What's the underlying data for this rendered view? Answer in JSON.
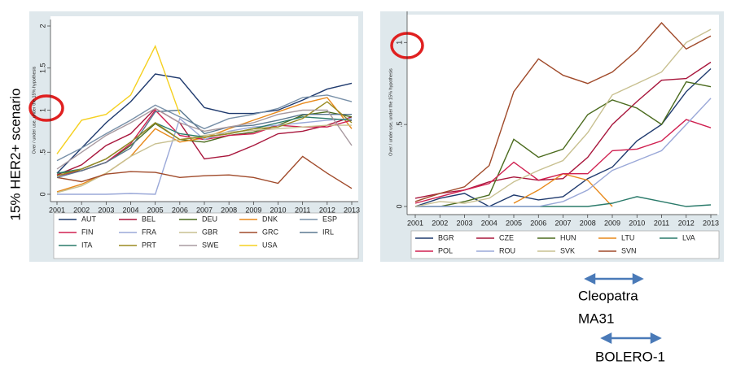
{
  "side_label": "15% HER2+ scenario",
  "annotations": [
    "Cleopatra",
    "MA31",
    "BOLERO-1"
  ],
  "chart_data": [
    {
      "type": "line",
      "y_label": "Over / under use, under the 15% hypothesis",
      "x": [
        2001,
        2002,
        2003,
        2004,
        2005,
        2006,
        2007,
        2008,
        2009,
        2010,
        2011,
        2012,
        2013
      ],
      "xlim": [
        2001,
        2013
      ],
      "xticks": [
        2001,
        2002,
        2003,
        2004,
        2005,
        2006,
        2007,
        2008,
        2009,
        2010,
        2011,
        2012,
        2013
      ],
      "ylim": [
        0,
        2
      ],
      "yticks": [
        0,
        {
          "value": 0.5,
          "label": ".5"
        },
        1,
        1.5,
        2
      ],
      "grid": false,
      "legend": "bottom",
      "series": [
        {
          "name": "AUT",
          "color": "#1f3a6e",
          "values": [
            0.25,
            0.55,
            0.85,
            1.1,
            1.43,
            1.38,
            1.03,
            0.96,
            0.96,
            1.0,
            1.12,
            1.25,
            1.32
          ]
        },
        {
          "name": "BEL",
          "color": "#a8163c",
          "values": [
            0.23,
            0.35,
            0.58,
            0.72,
            1.02,
            0.85,
            0.42,
            0.46,
            0.58,
            0.72,
            0.75,
            0.82,
            0.92
          ]
        },
        {
          "name": "DEU",
          "color": "#4b6b1e",
          "values": [
            0.25,
            0.28,
            0.38,
            0.58,
            0.84,
            0.65,
            0.62,
            0.7,
            0.74,
            0.82,
            0.94,
            0.98,
            0.92
          ]
        },
        {
          "name": "DNK",
          "color": "#e8891a",
          "values": [
            0.03,
            0.12,
            0.25,
            0.45,
            0.78,
            0.62,
            0.67,
            0.78,
            0.88,
            0.98,
            1.08,
            1.15,
            0.78
          ]
        },
        {
          "name": "ESP",
          "color": "#7890a8",
          "values": [
            0.4,
            0.55,
            0.72,
            0.88,
            1.06,
            0.92,
            0.78,
            0.9,
            0.95,
            1.02,
            1.15,
            1.18,
            1.1
          ]
        },
        {
          "name": "FIN",
          "color": "#d02050",
          "values": [
            0.22,
            0.28,
            0.38,
            0.6,
            1.0,
            0.7,
            0.65,
            0.7,
            0.72,
            0.82,
            0.8,
            0.8,
            0.88
          ]
        },
        {
          "name": "FRA",
          "color": "#9aa8d8",
          "values": [
            0.0,
            0.0,
            0.0,
            0.01,
            0.0,
            0.9,
            0.65,
            0.75,
            0.8,
            0.82,
            0.85,
            0.88,
            0.9
          ]
        },
        {
          "name": "GBR",
          "color": "#c8c090",
          "values": [
            0.02,
            0.1,
            0.25,
            0.45,
            0.6,
            0.65,
            0.7,
            0.74,
            0.76,
            0.78,
            0.8,
            0.82,
            0.82
          ]
        },
        {
          "name": "GRC",
          "color": "#a04a2a",
          "values": [
            0.2,
            0.15,
            0.24,
            0.27,
            0.26,
            0.2,
            0.22,
            0.23,
            0.2,
            0.13,
            0.45,
            0.25,
            0.07
          ]
        },
        {
          "name": "IRL",
          "color": "#5a7890",
          "values": [
            0.2,
            0.28,
            0.38,
            0.55,
            0.98,
            1.0,
            0.72,
            0.8,
            0.82,
            0.88,
            0.95,
            0.95,
            0.95
          ]
        },
        {
          "name": "ITA",
          "color": "#2a7a6a",
          "values": [
            0.25,
            0.3,
            0.42,
            0.62,
            0.85,
            0.72,
            0.68,
            0.72,
            0.78,
            0.85,
            0.92,
            0.9,
            0.88
          ]
        },
        {
          "name": "PRT",
          "color": "#9a8a20",
          "values": [
            0.22,
            0.3,
            0.42,
            0.62,
            0.85,
            0.65,
            0.68,
            0.72,
            0.78,
            0.8,
            0.9,
            1.1,
            0.85
          ]
        },
        {
          "name": "SWE",
          "color": "#a89aa0",
          "values": [
            0.3,
            0.5,
            0.7,
            0.85,
            1.02,
            0.85,
            0.75,
            0.8,
            0.85,
            0.95,
            1.0,
            1.0,
            0.58
          ]
        },
        {
          "name": "USA",
          "color": "#f5d020",
          "values": [
            0.48,
            0.88,
            0.95,
            1.18,
            1.76,
            0.95,
            null,
            null,
            null,
            null,
            null,
            null,
            null
          ]
        }
      ]
    },
    {
      "type": "line",
      "y_label": "Over / under use, under the 15% hypothesis",
      "x": [
        2001,
        2002,
        2003,
        2004,
        2005,
        2006,
        2007,
        2008,
        2009,
        2010,
        2011,
        2012,
        2013
      ],
      "xlim": [
        2001,
        2013
      ],
      "xticks": [
        2001,
        2002,
        2003,
        2004,
        2005,
        2006,
        2007,
        2008,
        2009,
        2010,
        2011,
        2012,
        2013
      ],
      "ylim": [
        0,
        1.15
      ],
      "yticks": [
        0,
        {
          "value": 0.5,
          "label": ".5"
        },
        1
      ],
      "grid": false,
      "legend": "bottom",
      "series": [
        {
          "name": "BGR",
          "color": "#1f3a6e",
          "values": [
            0.0,
            0.05,
            0.08,
            0.0,
            0.07,
            0.04,
            0.06,
            0.17,
            0.24,
            0.4,
            0.5,
            0.7,
            0.84
          ]
        },
        {
          "name": "CZE",
          "color": "#a8163c",
          "values": [
            0.05,
            0.08,
            0.1,
            0.15,
            0.18,
            0.16,
            0.17,
            0.3,
            0.5,
            0.64,
            0.77,
            0.78,
            0.88
          ]
        },
        {
          "name": "HUN",
          "color": "#4b6b1e",
          "values": [
            0.0,
            0.0,
            0.03,
            0.07,
            0.41,
            0.3,
            0.35,
            0.56,
            0.65,
            0.6,
            0.5,
            0.76,
            0.73
          ]
        },
        {
          "name": "LTU",
          "color": "#e8891a",
          "values": [
            null,
            null,
            null,
            null,
            0.02,
            0.1,
            0.2,
            0.16,
            0.0,
            null,
            null,
            null,
            null
          ]
        },
        {
          "name": "LVA",
          "color": "#2a7a6a",
          "values": [
            0.0,
            0.0,
            0.0,
            0.0,
            0.0,
            0.0,
            0.0,
            0.0,
            0.02,
            0.06,
            0.03,
            0.0,
            0.01
          ]
        },
        {
          "name": "POL",
          "color": "#d02050",
          "values": [
            0.02,
            0.06,
            0.1,
            0.14,
            0.27,
            0.16,
            0.2,
            0.2,
            0.34,
            0.35,
            0.4,
            0.53,
            0.48
          ]
        },
        {
          "name": "ROU",
          "color": "#9aa8d8",
          "values": [
            0.0,
            0.0,
            0.0,
            0.0,
            0.0,
            0.0,
            0.03,
            0.1,
            0.22,
            0.28,
            0.34,
            0.5,
            0.66
          ]
        },
        {
          "name": "SVK",
          "color": "#c8c090",
          "values": [
            0.0,
            0.03,
            0.02,
            0.05,
            0.15,
            0.22,
            0.28,
            0.45,
            0.68,
            0.75,
            0.82,
            1.0,
            1.08
          ]
        },
        {
          "name": "SVN",
          "color": "#a04a2a",
          "values": [
            0.03,
            0.08,
            0.12,
            0.25,
            0.7,
            0.9,
            0.8,
            0.75,
            0.82,
            0.95,
            1.12,
            0.96,
            1.04
          ]
        }
      ]
    }
  ]
}
